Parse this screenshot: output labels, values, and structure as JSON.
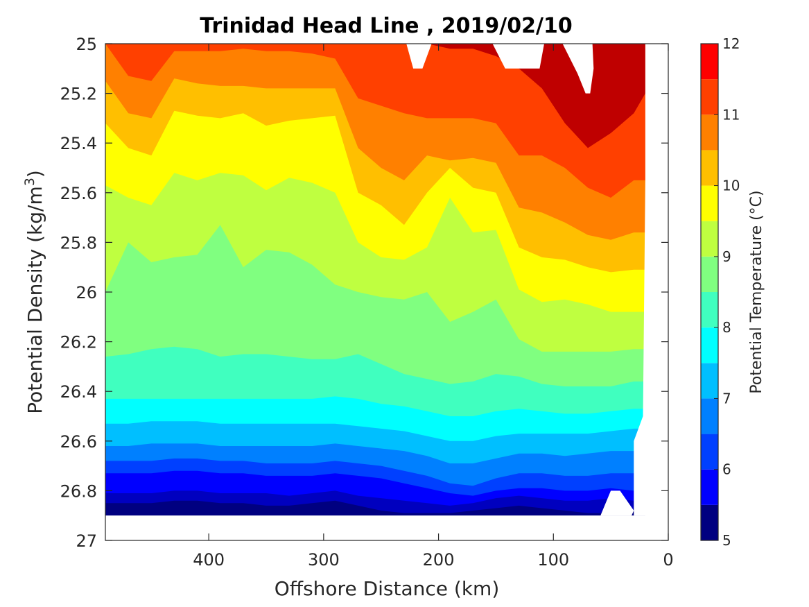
{
  "chart_data": {
    "type": "filled-contour",
    "title": "Trinidad Head Line , 2019/02/10",
    "xlabel": "Offshore Distance (km)",
    "ylabel_main": "Potential Density (kg/m",
    "ylabel_sup": "3",
    "ylabel_close": ")",
    "colorbar_label": "Potential Temperature (°C)",
    "x_reversed": true,
    "y_reversed": true,
    "xlim": [
      490,
      0
    ],
    "ylim": [
      25,
      27
    ],
    "x_ticks": [
      400,
      300,
      200,
      100,
      0
    ],
    "y_ticks": [
      25,
      25.2,
      25.4,
      25.6,
      25.8,
      26,
      26.2,
      26.4,
      26.6,
      26.8,
      27
    ],
    "y_tick_labels": [
      "25",
      "25.2",
      "25.4",
      "25.6",
      "25.8",
      "26",
      "26.2",
      "26.4",
      "26.6",
      "26.8",
      "27"
    ],
    "colorbar_range": [
      5,
      12
    ],
    "colorbar_ticks": [
      5,
      6,
      7,
      8,
      9,
      10,
      11,
      12
    ],
    "contour_levels": [
      5,
      5.5,
      6,
      6.5,
      7,
      7.5,
      8,
      8.5,
      9,
      9.5,
      10,
      10.5,
      11,
      11.5,
      12
    ],
    "level_colors": [
      "#000080",
      "#0000bf",
      "#0000ff",
      "#0040ff",
      "#0080ff",
      "#00bfff",
      "#00ffff",
      "#40ffbf",
      "#80ff80",
      "#bfff40",
      "#ffff00",
      "#ffbf00",
      "#ff8000",
      "#ff4000",
      "#ff0000",
      "#bf0000"
    ],
    "data_bottom_density": 26.9,
    "x_grid": [
      490,
      470,
      450,
      430,
      410,
      390,
      370,
      350,
      330,
      310,
      290,
      270,
      250,
      230,
      210,
      190,
      170,
      150,
      130,
      110,
      90,
      70,
      50,
      30,
      20
    ],
    "isopycnal_of_isotherm": {
      "5.5": [
        26.85,
        26.85,
        26.85,
        26.84,
        26.84,
        26.85,
        26.85,
        26.86,
        26.86,
        26.85,
        26.84,
        26.86,
        26.88,
        26.89,
        26.89,
        26.89,
        26.88,
        26.87,
        26.86,
        26.87,
        26.88,
        26.89,
        26.89,
        26.88,
        26.88
      ],
      "6": [
        26.81,
        26.81,
        26.81,
        26.8,
        26.8,
        26.81,
        26.81,
        26.81,
        26.82,
        26.81,
        26.8,
        26.82,
        26.83,
        26.84,
        26.85,
        26.86,
        26.85,
        26.83,
        26.82,
        26.83,
        26.84,
        26.84,
        26.83,
        26.84,
        26.84
      ],
      "6.5": [
        26.73,
        26.73,
        26.73,
        26.72,
        26.72,
        26.73,
        26.73,
        26.74,
        26.74,
        26.74,
        26.73,
        26.74,
        26.75,
        26.77,
        26.79,
        26.81,
        26.82,
        26.8,
        26.79,
        26.79,
        26.8,
        26.8,
        26.79,
        26.8,
        26.8
      ],
      "7": [
        26.68,
        26.68,
        26.68,
        26.67,
        26.67,
        26.68,
        26.68,
        26.69,
        26.69,
        26.69,
        26.68,
        26.69,
        26.7,
        26.72,
        26.74,
        26.77,
        26.78,
        26.75,
        26.73,
        26.73,
        26.74,
        26.74,
        26.73,
        26.73,
        26.73
      ],
      "7.5": [
        26.62,
        26.62,
        26.61,
        26.61,
        26.61,
        26.62,
        26.62,
        26.62,
        26.62,
        26.62,
        26.61,
        26.62,
        26.63,
        26.64,
        26.66,
        26.69,
        26.69,
        26.67,
        26.65,
        26.65,
        26.66,
        26.65,
        26.64,
        26.64,
        26.64
      ],
      "8": [
        26.53,
        26.53,
        26.52,
        26.52,
        26.52,
        26.53,
        26.53,
        26.53,
        26.53,
        26.53,
        26.53,
        26.54,
        26.55,
        26.56,
        26.58,
        26.6,
        26.6,
        26.58,
        26.57,
        26.57,
        26.57,
        26.57,
        26.56,
        26.55,
        26.55
      ],
      "8.5": [
        26.43,
        26.43,
        26.43,
        26.43,
        26.43,
        26.43,
        26.43,
        26.43,
        26.43,
        26.43,
        26.42,
        26.43,
        26.45,
        26.46,
        26.48,
        26.5,
        26.5,
        26.48,
        26.47,
        26.48,
        26.49,
        26.49,
        26.48,
        26.47,
        26.47
      ],
      "9": [
        26.26,
        26.25,
        26.23,
        26.22,
        26.23,
        26.26,
        26.25,
        26.25,
        26.26,
        26.27,
        26.27,
        26.25,
        26.29,
        26.33,
        26.35,
        26.37,
        26.36,
        26.33,
        26.34,
        26.37,
        26.38,
        26.38,
        26.38,
        26.36,
        26.36
      ],
      "9.5": [
        26.0,
        25.8,
        25.88,
        25.86,
        25.85,
        25.73,
        25.9,
        25.83,
        25.84,
        25.89,
        25.97,
        26.0,
        26.02,
        26.03,
        26.0,
        26.12,
        26.08,
        26.03,
        26.19,
        26.24,
        26.24,
        26.24,
        26.24,
        26.23,
        26.23
      ],
      "10": [
        25.57,
        25.62,
        25.65,
        25.52,
        25.55,
        25.52,
        25.53,
        25.59,
        25.54,
        25.56,
        25.6,
        25.8,
        25.86,
        25.87,
        25.82,
        25.62,
        25.76,
        25.75,
        25.99,
        26.04,
        26.03,
        26.05,
        26.08,
        26.08,
        26.08
      ],
      "10.5": [
        25.32,
        25.42,
        25.45,
        25.27,
        25.29,
        25.3,
        25.28,
        25.33,
        25.31,
        25.3,
        25.29,
        25.6,
        25.65,
        25.73,
        25.6,
        25.5,
        25.58,
        25.6,
        25.82,
        25.86,
        25.87,
        25.9,
        25.92,
        25.91,
        25.91
      ],
      "11": [
        25.15,
        25.28,
        25.3,
        25.14,
        25.16,
        25.17,
        25.17,
        25.18,
        25.18,
        25.18,
        25.18,
        25.42,
        25.5,
        25.55,
        25.45,
        25.47,
        25.46,
        25.48,
        25.66,
        25.68,
        25.72,
        25.77,
        25.79,
        25.76,
        25.76
      ],
      "11.5": [
        25.0,
        25.13,
        25.15,
        25.03,
        25.03,
        25.03,
        25.02,
        25.03,
        25.03,
        25.04,
        25.06,
        25.22,
        25.25,
        25.28,
        25.3,
        25.3,
        25.3,
        25.32,
        25.45,
        25.45,
        25.5,
        25.58,
        25.62,
        25.55,
        25.55
      ],
      "12": [
        25.0,
        25.0,
        25.0,
        25.0,
        25.0,
        25.0,
        25.0,
        25.0,
        25.0,
        25.0,
        25.0,
        25.0,
        25.0,
        25.0,
        25.0,
        25.02,
        25.02,
        25.05,
        25.1,
        25.18,
        25.32,
        25.42,
        25.36,
        25.28,
        25.2
      ]
    },
    "missing_regions": [
      {
        "x": [
          228,
          222,
          214,
          206,
          212,
          224
        ],
        "y": [
          25.0,
          25.1,
          25.1,
          25.0,
          25.0,
          25.0
        ]
      },
      {
        "x": [
          153,
          142,
          112,
          108,
          92,
          79,
          72,
          68,
          65,
          66,
          148
        ],
        "y": [
          25.0,
          25.1,
          25.1,
          25.0,
          25.0,
          25.12,
          25.2,
          25.2,
          25.1,
          25.0,
          25.0
        ]
      },
      {
        "x": [
          59,
          50,
          42,
          30,
          32,
          64
        ],
        "y": [
          26.9,
          26.8,
          26.8,
          26.88,
          26.9,
          26.9
        ]
      }
    ]
  }
}
